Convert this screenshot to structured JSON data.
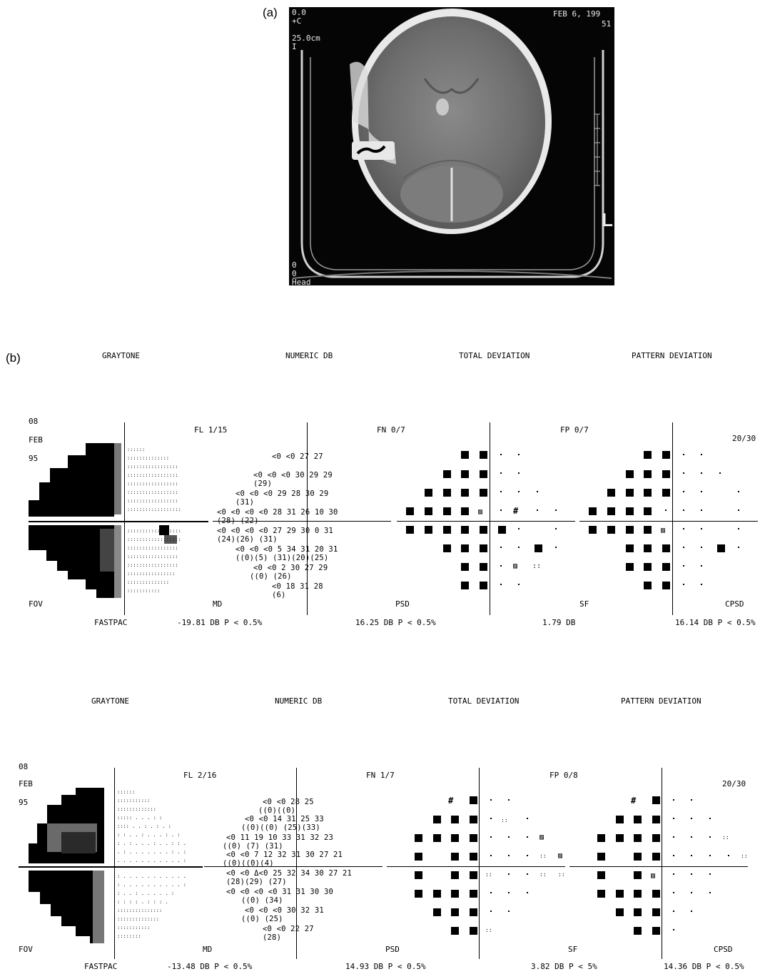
{
  "panel_a_label": "(a)",
  "panel_b_label": "(b)",
  "ct": {
    "top_left": "0.0\n+C",
    "scale": "25.0cm\nI",
    "date": "FEB 6, 199",
    "date_line2": "51",
    "bottom_left": "0\n0\nHead",
    "orientation": "L"
  },
  "fields": [
    {
      "headers": [
        "GRAYTONE",
        "NUMERIC DB",
        "TOTAL DEVIATION",
        "PATTERN DEVIATION"
      ],
      "date_day": "08",
      "date_month": "FEB",
      "date_year": "95",
      "fl": "FL  1/15",
      "fn": "FN  0/7",
      "fp": "FP  0/7",
      "acuity": "20/30",
      "fov": "FOV",
      "md_label": "MD",
      "psd_label": "PSD",
      "sf_label": "SF",
      "cpsd_label": "CPSD",
      "strategy": "FASTPAC",
      "md_value": "-19.81 DB   P < 0.5%",
      "psd_value": "16.25 DB   P < 0.5%",
      "sf_value": "1.79 DB",
      "cpsd_value": "16.14 DB   P < 0.5%",
      "numeric_rows": [
        "<0  <0  27  27",
        "<0  <0  <0  30  29  29",
        "                (29)",
        "<0  <0  <0  29  28  30  29",
        "                (31)",
        "<0  <0  <0  <0  28  31  26  10  30",
        "              (28)     (22)",
        "<0  <0  <0  <0  27  29  30  0   31",
        "           (24)(26)         (31)",
        "<0  <0  <0  5   34  31  20  31",
        "           ((0)(5)  (31)(20)(25)",
        "<0  <0  2   30  27  29",
        "((0)              (26)",
        "<0  18  31  28",
        "    (6)"
      ]
    },
    {
      "headers": [
        "GRAYTONE",
        "NUMERIC DB",
        "TOTAL DEVIATION",
        "PATTERN DEVIATION"
      ],
      "date_day": "08",
      "date_month": "FEB",
      "date_year": "95",
      "fl": "FL  2/16",
      "fn": "FN  1/7",
      "fp": "FP  0/8",
      "acuity": "20/30",
      "fov": "FOV",
      "md_label": "MD",
      "psd_label": "PSD",
      "sf_label": "SF",
      "cpsd_label": "CPSD",
      "strategy": "FASTPAC",
      "md_value": "-13.48 DB   P < 0.5%",
      "psd_value": "14.93 DB   P < 0.5%",
      "sf_value": "3.82 DB   P <   5%",
      "cpsd_value": "14.36 DB   P < 0.5%",
      "numeric_rows": [
        "<0  <0  28  25",
        "((0)((0)",
        "<0  <0  14  31  25  33",
        "((0)((0)     (25)(33)",
        "<0  11  19  10  33  31  32  23",
        "((0)    (7)      (31)",
        "<0  <0  7   12  32  31  30  27  21",
        "((0)((0)(4)",
        "<0  <0  Δ<0  25  32  34  30  27  21",
        "            (28)(29)            (27)",
        "<0  <0  <0  <0  31  31  30  30",
        "      ((0)        (34)",
        "<0  <0  <0  30  32  31",
        "((0)                (25)",
        "<0  <0  22  27",
        "        (28)"
      ]
    }
  ]
}
